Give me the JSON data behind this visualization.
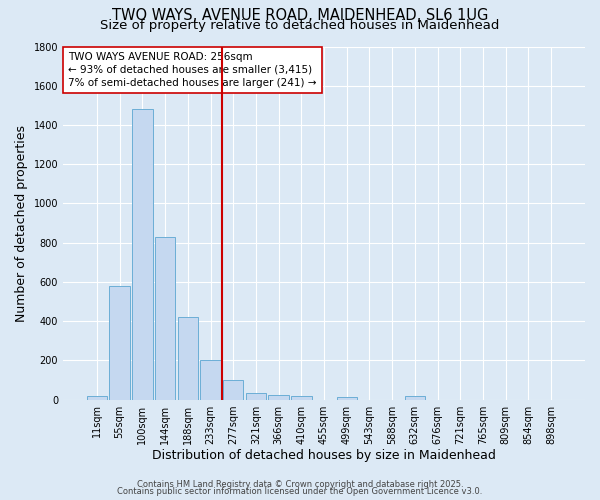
{
  "title_line1": "TWO WAYS, AVENUE ROAD, MAIDENHEAD, SL6 1UG",
  "title_line2": "Size of property relative to detached houses in Maidenhead",
  "xlabel": "Distribution of detached houses by size in Maidenhead",
  "ylabel": "Number of detached properties",
  "categories": [
    "11sqm",
    "55sqm",
    "100sqm",
    "144sqm",
    "188sqm",
    "233sqm",
    "277sqm",
    "321sqm",
    "366sqm",
    "410sqm",
    "455sqm",
    "499sqm",
    "543sqm",
    "588sqm",
    "632sqm",
    "676sqm",
    "721sqm",
    "765sqm",
    "809sqm",
    "854sqm",
    "898sqm"
  ],
  "values": [
    20,
    580,
    1480,
    830,
    420,
    200,
    100,
    35,
    25,
    20,
    0,
    15,
    0,
    0,
    20,
    0,
    0,
    0,
    0,
    0,
    0
  ],
  "bar_color": "#c5d8f0",
  "bar_edgecolor": "#6baed6",
  "background_color": "#dce9f5",
  "vline_x": 5.5,
  "vline_color": "#cc0000",
  "annotation_title": "TWO WAYS AVENUE ROAD: 256sqm",
  "annotation_line2": "← 93% of detached houses are smaller (3,415)",
  "annotation_line3": "7% of semi-detached houses are larger (241) →",
  "annotation_box_facecolor": "#ffffff",
  "annotation_box_edgecolor": "#cc0000",
  "ylim": [
    0,
    1800
  ],
  "yticks": [
    0,
    200,
    400,
    600,
    800,
    1000,
    1200,
    1400,
    1600,
    1800
  ],
  "footer_line1": "Contains HM Land Registry data © Crown copyright and database right 2025.",
  "footer_line2": "Contains public sector information licensed under the Open Government Licence v3.0.",
  "title_fontsize": 10.5,
  "subtitle_fontsize": 9.5,
  "axis_label_fontsize": 9,
  "tick_fontsize": 7,
  "annotation_fontsize": 7.5,
  "footer_fontsize": 6
}
